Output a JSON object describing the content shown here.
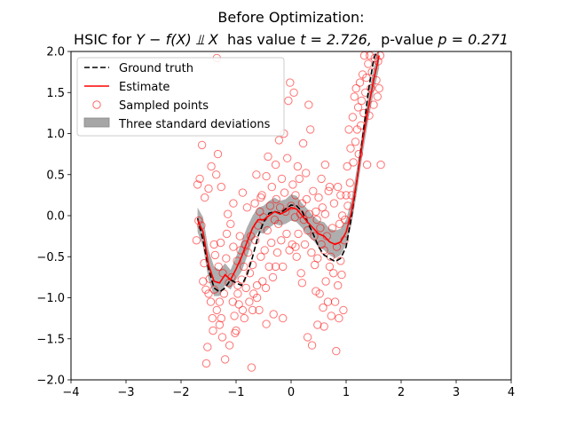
{
  "chart_data": {
    "type": "scatter",
    "title_line1": "Before Optimization:",
    "title_line2_prefix": "HSIC for ",
    "title_line2_math": "Y − f(X) ⫫ X",
    "title_line2_mid": "  has value ",
    "title_line2_t": "t = 2.726,",
    "title_line2_p_label": "  p-value ",
    "title_line2_p": "p = 0.271",
    "xlim": [
      -4,
      4
    ],
    "ylim": [
      -2.0,
      2.0
    ],
    "xticks": [
      "−4",
      "−3",
      "−2",
      "−1",
      "0",
      "1",
      "2",
      "3",
      "4"
    ],
    "xtick_values": [
      -4,
      -3,
      -2,
      -1,
      0,
      1,
      2,
      3,
      4
    ],
    "yticks": [
      "−2.0",
      "−1.5",
      "−1.0",
      "−0.5",
      "0.0",
      "0.5",
      "1.0",
      "1.5",
      "2.0"
    ],
    "ytick_values": [
      -2.0,
      -1.5,
      -1.0,
      -0.5,
      0.0,
      0.5,
      1.0,
      1.5,
      2.0
    ],
    "grid": false,
    "legend_position": "top-left",
    "legend": [
      {
        "label": "Ground truth",
        "style": "dashed-line",
        "color": "#000000"
      },
      {
        "label": "Estimate",
        "style": "line",
        "color": "#ff0000"
      },
      {
        "label": "Sampled points",
        "style": "hollow-circle",
        "color": "#ff0000"
      },
      {
        "label": "Three standard deviations",
        "style": "band",
        "color": "#a6a6a6"
      }
    ],
    "series": [
      {
        "name": "Ground truth",
        "x": [
          -1.7,
          -1.6,
          -1.5,
          -1.4,
          -1.3,
          -1.2,
          -1.1,
          -1.0,
          -0.9,
          -0.8,
          -0.7,
          -0.6,
          -0.5,
          -0.4,
          -0.3,
          -0.2,
          -0.1,
          0.0,
          0.1,
          0.2,
          0.3,
          0.4,
          0.5,
          0.6,
          0.7,
          0.8,
          0.9,
          1.0,
          1.1,
          1.2,
          1.3,
          1.4,
          1.5,
          1.55
        ],
        "y": [
          -0.03,
          -0.3,
          -0.65,
          -0.88,
          -0.93,
          -0.88,
          -0.78,
          -0.82,
          -0.85,
          -0.72,
          -0.5,
          -0.25,
          -0.08,
          0.03,
          0.05,
          0.03,
          0.08,
          0.13,
          0.12,
          0.05,
          -0.08,
          -0.22,
          -0.38,
          -0.48,
          -0.52,
          -0.56,
          -0.52,
          -0.38,
          0.0,
          0.45,
          0.95,
          1.5,
          1.9,
          2.0
        ]
      },
      {
        "name": "Estimate",
        "x": [
          -1.7,
          -1.6,
          -1.5,
          -1.4,
          -1.3,
          -1.2,
          -1.1,
          -1.0,
          -0.9,
          -0.8,
          -0.7,
          -0.6,
          -0.5,
          -0.4,
          -0.3,
          -0.2,
          -0.1,
          0.0,
          0.1,
          0.2,
          0.3,
          0.4,
          0.5,
          0.6,
          0.7,
          0.8,
          0.9,
          1.0,
          1.1,
          1.2,
          1.3,
          1.4,
          1.5,
          1.6
        ],
        "y": [
          -0.05,
          -0.2,
          -0.6,
          -0.8,
          -0.82,
          -0.72,
          -0.78,
          -0.65,
          -0.5,
          -0.32,
          -0.15,
          -0.05,
          -0.05,
          0.0,
          0.05,
          0.02,
          0.05,
          0.1,
          0.08,
          0.0,
          -0.08,
          -0.15,
          -0.22,
          -0.25,
          -0.32,
          -0.35,
          -0.32,
          -0.2,
          0.05,
          0.45,
          0.9,
          1.3,
          1.65,
          1.95
        ]
      },
      {
        "name": "Three standard deviations",
        "x": [
          -1.7,
          -1.6,
          -1.5,
          -1.4,
          -1.3,
          -1.2,
          -1.1,
          -1.0,
          -0.9,
          -0.8,
          -0.7,
          -0.6,
          -0.5,
          -0.4,
          -0.3,
          -0.2,
          -0.1,
          0.0,
          0.1,
          0.2,
          0.3,
          0.4,
          0.5,
          0.6,
          0.7,
          0.8,
          0.9,
          1.0,
          1.1,
          1.2,
          1.3,
          1.4,
          1.5,
          1.6
        ],
        "lower": [
          -0.2,
          -0.38,
          -0.78,
          -0.98,
          -0.98,
          -0.85,
          -0.9,
          -0.78,
          -0.68,
          -0.5,
          -0.3,
          -0.2,
          -0.22,
          -0.15,
          -0.1,
          -0.12,
          -0.1,
          -0.06,
          -0.08,
          -0.15,
          -0.24,
          -0.3,
          -0.38,
          -0.42,
          -0.48,
          -0.52,
          -0.48,
          -0.35,
          -0.1,
          0.3,
          0.75,
          1.15,
          1.5,
          1.8
        ],
        "upper": [
          0.1,
          -0.02,
          -0.42,
          -0.62,
          -0.66,
          -0.58,
          -0.66,
          -0.5,
          -0.32,
          -0.14,
          0.0,
          0.1,
          0.12,
          0.18,
          0.22,
          0.18,
          0.2,
          0.26,
          0.24,
          0.15,
          0.08,
          0.0,
          -0.06,
          -0.08,
          -0.16,
          -0.18,
          -0.16,
          -0.05,
          0.2,
          0.6,
          1.05,
          1.45,
          1.8,
          2.1
        ]
      },
      {
        "name": "Sampled points",
        "points": [
          [
            -1.72,
            -0.3
          ],
          [
            -1.7,
            0.38
          ],
          [
            -1.68,
            -0.06
          ],
          [
            -1.66,
            0.45
          ],
          [
            -1.63,
            -0.12
          ],
          [
            -1.62,
            0.86
          ],
          [
            -1.6,
            -0.8
          ],
          [
            -1.58,
            -0.58
          ],
          [
            -1.57,
            0.22
          ],
          [
            -1.55,
            -0.9
          ],
          [
            -1.54,
            -1.8
          ],
          [
            -1.52,
            -1.6
          ],
          [
            -1.5,
            0.33
          ],
          [
            -1.48,
            -0.77
          ],
          [
            -1.46,
            -1.05
          ],
          [
            -1.45,
            0.6
          ],
          [
            -1.43,
            -1.25
          ],
          [
            -1.42,
            -1.4
          ],
          [
            -1.4,
            -0.9
          ],
          [
            -1.38,
            -0.48
          ],
          [
            -1.36,
            0.5
          ],
          [
            -1.35,
            -1.15
          ],
          [
            -1.33,
            0.75
          ],
          [
            -1.32,
            -0.62
          ],
          [
            -1.3,
            -1.05
          ],
          [
            -1.28,
            -0.33
          ],
          [
            -1.27,
            -1.25
          ],
          [
            -1.25,
            -1.48
          ],
          [
            -1.24,
            -0.7
          ],
          [
            -1.22,
            -0.95
          ],
          [
            -1.2,
            -1.75
          ],
          [
            -1.18,
            -0.52
          ],
          [
            -1.17,
            -0.22
          ],
          [
            -1.15,
            0.02
          ],
          [
            -1.13,
            -0.82
          ],
          [
            -1.12,
            -1.58
          ],
          [
            -1.1,
            -0.1
          ],
          [
            -1.08,
            -0.75
          ],
          [
            -1.06,
            -1.05
          ],
          [
            -1.05,
            -0.38
          ],
          [
            -1.03,
            -1.22
          ],
          [
            -1.02,
            -1.43
          ],
          [
            -1.0,
            -1.4
          ],
          [
            -0.98,
            -0.55
          ],
          [
            -0.97,
            -0.95
          ],
          [
            -0.95,
            -1.08
          ],
          [
            -0.93,
            -0.25
          ],
          [
            -0.92,
            -0.42
          ],
          [
            -0.9,
            -0.78
          ],
          [
            -0.88,
            -1.15
          ],
          [
            -0.86,
            -0.62
          ],
          [
            -0.85,
            -1.25
          ],
          [
            -0.83,
            -0.35
          ],
          [
            -0.82,
            -0.88
          ],
          [
            -0.8,
            0.1
          ],
          [
            -0.78,
            -0.45
          ],
          [
            -0.76,
            -1.05
          ],
          [
            -0.75,
            -0.7
          ],
          [
            -0.73,
            -0.25
          ],
          [
            -0.72,
            -1.85
          ],
          [
            -0.7,
            -0.6
          ],
          [
            -0.68,
            -0.95
          ],
          [
            -0.66,
            0.15
          ],
          [
            -0.65,
            -0.3
          ],
          [
            -0.63,
            0.5
          ],
          [
            -0.62,
            -0.85
          ],
          [
            -0.6,
            -0.12
          ],
          [
            -0.58,
            -1.15
          ],
          [
            -0.57,
            0.05
          ],
          [
            -0.55,
            -0.5
          ],
          [
            -0.53,
            0.25
          ],
          [
            -0.52,
            -0.8
          ],
          [
            -0.5,
            -0.02
          ],
          [
            -0.48,
            -0.42
          ],
          [
            -0.46,
            -0.88
          ],
          [
            -0.45,
            0.48
          ],
          [
            -0.43,
            -0.18
          ],
          [
            -0.42,
            0.72
          ],
          [
            -0.4,
            -0.62
          ],
          [
            -0.38,
            0.12
          ],
          [
            -0.36,
            -0.33
          ],
          [
            -0.35,
            0.35
          ],
          [
            -0.33,
            -0.75
          ],
          [
            -0.32,
            -1.2
          ],
          [
            -0.3,
            -0.05
          ],
          [
            -0.28,
            0.62
          ],
          [
            -0.27,
            0.2
          ],
          [
            -0.25,
            -0.45
          ],
          [
            -0.23,
            -0.1
          ],
          [
            -0.22,
            0.92
          ],
          [
            -0.2,
            0.1
          ],
          [
            -0.18,
            -0.3
          ],
          [
            -0.17,
            0.45
          ],
          [
            -0.15,
            -0.62
          ],
          [
            -0.13,
            1.0
          ],
          [
            -0.12,
            0.28
          ],
          [
            -0.1,
            0.05
          ],
          [
            -0.08,
            -0.22
          ],
          [
            -0.07,
            0.7
          ],
          [
            -0.05,
            1.4
          ],
          [
            -0.03,
            -0.42
          ],
          [
            -0.02,
            1.62
          ],
          [
            0.0,
            0.12
          ],
          [
            0.02,
            -0.35
          ],
          [
            0.03,
            0.38
          ],
          [
            0.05,
            1.5
          ],
          [
            0.07,
            -0.02
          ],
          [
            0.08,
            0.25
          ],
          [
            0.1,
            -0.5
          ],
          [
            0.12,
            0.6
          ],
          [
            0.13,
            -0.22
          ],
          [
            0.15,
            0.45
          ],
          [
            0.17,
            0.02
          ],
          [
            0.18,
            -0.7
          ],
          [
            0.2,
            0.15
          ],
          [
            0.22,
            0.88
          ],
          [
            0.23,
            -0.05
          ],
          [
            0.25,
            -0.35
          ],
          [
            0.27,
            0.52
          ],
          [
            0.28,
            0.2
          ],
          [
            0.3,
            -0.18
          ],
          [
            0.32,
            1.35
          ],
          [
            0.33,
            0.02
          ],
          [
            0.35,
            1.05
          ],
          [
            0.37,
            -0.45
          ],
          [
            0.38,
            -1.58
          ],
          [
            0.4,
            0.3
          ],
          [
            0.42,
            -0.25
          ],
          [
            0.43,
            -0.6
          ],
          [
            0.45,
            0.05
          ],
          [
            0.47,
            -0.05
          ],
          [
            0.48,
            -0.52
          ],
          [
            0.5,
            0.22
          ],
          [
            0.52,
            -0.95
          ],
          [
            0.53,
            -0.15
          ],
          [
            0.55,
            -0.35
          ],
          [
            0.57,
            0.1
          ],
          [
            0.58,
            -1.12
          ],
          [
            0.6,
            -0.42
          ],
          [
            0.62,
            0.02
          ],
          [
            0.63,
            -0.8
          ],
          [
            0.65,
            -0.25
          ],
          [
            0.67,
            -1.05
          ],
          [
            0.68,
            0.3
          ],
          [
            0.7,
            -0.62
          ],
          [
            0.72,
            -0.5
          ],
          [
            0.73,
            -1.22
          ],
          [
            0.75,
            -0.15
          ],
          [
            0.77,
            -0.7
          ],
          [
            0.78,
            0.15
          ],
          [
            0.8,
            -1.05
          ],
          [
            0.82,
            -1.65
          ],
          [
            0.83,
            -0.38
          ],
          [
            0.85,
            -0.85
          ],
          [
            0.87,
            -1.25
          ],
          [
            0.88,
            -0.1
          ],
          [
            0.9,
            -0.55
          ],
          [
            0.92,
            -0.72
          ],
          [
            0.93,
            0.0
          ],
          [
            0.95,
            -1.15
          ],
          [
            0.97,
            -0.3
          ],
          [
            0.98,
            -0.05
          ],
          [
            1.0,
            0.25
          ],
          [
            1.02,
            0.6
          ],
          [
            1.03,
            0.12
          ],
          [
            1.05,
            1.05
          ],
          [
            1.07,
            0.4
          ],
          [
            1.08,
            0.82
          ],
          [
            1.1,
            0.25
          ],
          [
            1.12,
            1.2
          ],
          [
            1.13,
            0.65
          ],
          [
            1.15,
            1.45
          ],
          [
            1.17,
            0.9
          ],
          [
            1.18,
            1.55
          ],
          [
            1.2,
            1.05
          ],
          [
            1.22,
            1.32
          ],
          [
            1.23,
            0.75
          ],
          [
            1.25,
            1.62
          ],
          [
            1.27,
            1.1
          ],
          [
            1.28,
            1.4
          ],
          [
            1.3,
            1.72
          ],
          [
            1.32,
            1.25
          ],
          [
            1.33,
            1.95
          ],
          [
            1.35,
            1.5
          ],
          [
            1.37,
            1.68
          ],
          [
            1.38,
            0.62
          ],
          [
            1.4,
            1.85
          ],
          [
            1.42,
            1.22
          ],
          [
            1.43,
            1.95
          ],
          [
            1.45,
            1.55
          ],
          [
            1.47,
            1.75
          ],
          [
            1.5,
            1.35
          ],
          [
            1.52,
            1.92
          ],
          [
            1.55,
            1.65
          ],
          [
            1.57,
            1.45
          ],
          [
            1.58,
            1.88
          ],
          [
            1.6,
            1.55
          ],
          [
            1.62,
            1.95
          ],
          [
            1.63,
            0.62
          ],
          [
            -1.35,
            1.92
          ],
          [
            -0.7,
            -1.15
          ],
          [
            -0.62,
            -1.0
          ],
          [
            -0.97,
            -0.85
          ],
          [
            -0.45,
            -1.32
          ],
          [
            0.2,
            -0.82
          ],
          [
            0.45,
            -0.92
          ],
          [
            -1.27,
            0.35
          ],
          [
            -1.05,
            0.15
          ],
          [
            -0.88,
            0.28
          ],
          [
            -0.55,
            0.22
          ],
          [
            0.55,
            0.45
          ],
          [
            0.62,
            0.62
          ],
          [
            0.7,
            0.35
          ],
          [
            0.85,
            0.35
          ],
          [
            0.9,
            0.25
          ],
          [
            -0.15,
            -1.25
          ],
          [
            0.3,
            -1.48
          ],
          [
            0.48,
            -1.33
          ],
          [
            0.6,
            -1.35
          ],
          [
            -1.3,
            -1.33
          ],
          [
            -1.4,
            -0.35
          ],
          [
            -1.5,
            -0.95
          ],
          [
            -0.28,
            -0.62
          ],
          [
            0.08,
            -0.38
          ]
        ]
      }
    ]
  }
}
